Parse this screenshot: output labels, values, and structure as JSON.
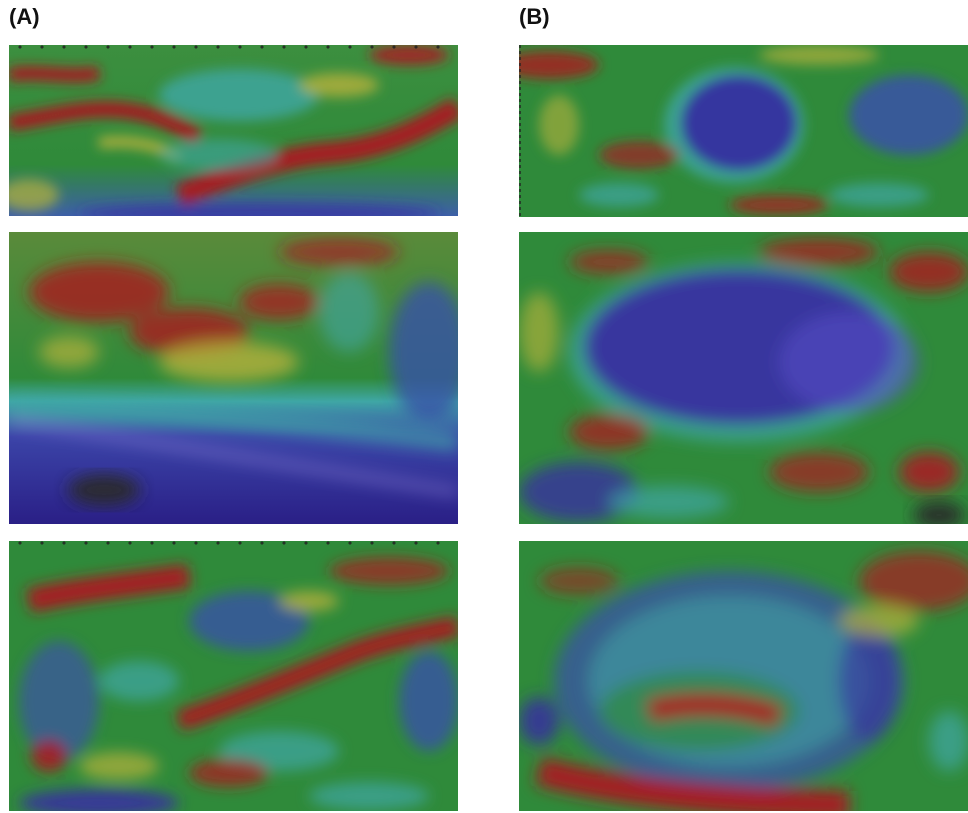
{
  "labels": {
    "panel_a": "(A)",
    "panel_b": "(B)"
  },
  "colors": {
    "background_green": "#2f8a3a",
    "stiff_red": "#a51f22",
    "soft_blue": "#3730a0",
    "mid_yellow": "#b7b23c",
    "cyan": "#3fa7a5",
    "artifact_gray": "#2b2b2b"
  }
}
